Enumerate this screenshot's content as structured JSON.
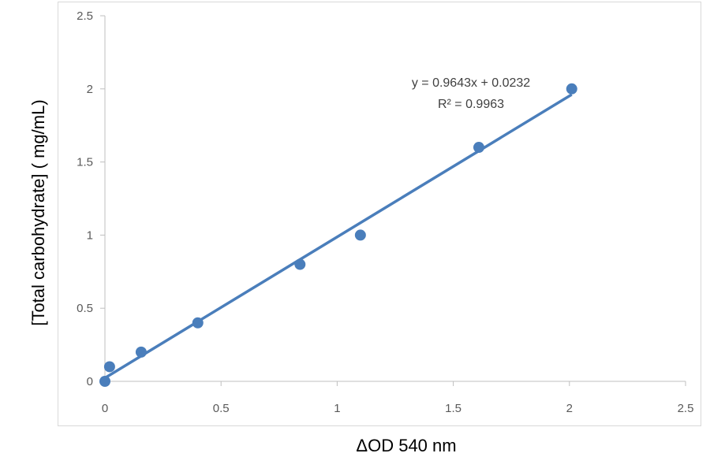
{
  "chart_data": {
    "type": "scatter",
    "title": "",
    "xlabel": "ΔOD 540 nm",
    "ylabel": "[Total carbohydrate] ( mg/mL)",
    "xlim": [
      0,
      2.5
    ],
    "ylim": [
      0,
      2.5
    ],
    "xticks": [
      "0",
      "0.5",
      "1",
      "1.5",
      "2",
      "2.5"
    ],
    "yticks": [
      "0",
      "0.5",
      "1",
      "1.5",
      "2",
      "2.5"
    ],
    "grid": false,
    "color": "#4a7ebb",
    "points": [
      {
        "x": 0,
        "y": 0
      },
      {
        "x": 0.02,
        "y": 0.1
      },
      {
        "x": 0.156,
        "y": 0.2
      },
      {
        "x": 0.4,
        "y": 0.4
      },
      {
        "x": 0.84,
        "y": 0.8
      },
      {
        "x": 1.1,
        "y": 1.0
      },
      {
        "x": 1.61,
        "y": 1.6
      },
      {
        "x": 2.01,
        "y": 2.0
      }
    ],
    "trendline": {
      "slope": 0.9643,
      "intercept": 0.0232,
      "x_range": [
        0,
        2.01
      ]
    },
    "annotations": {
      "equation": "y = 0.9643x + 0.0232",
      "r2_label": "R² = 0.9963"
    }
  }
}
